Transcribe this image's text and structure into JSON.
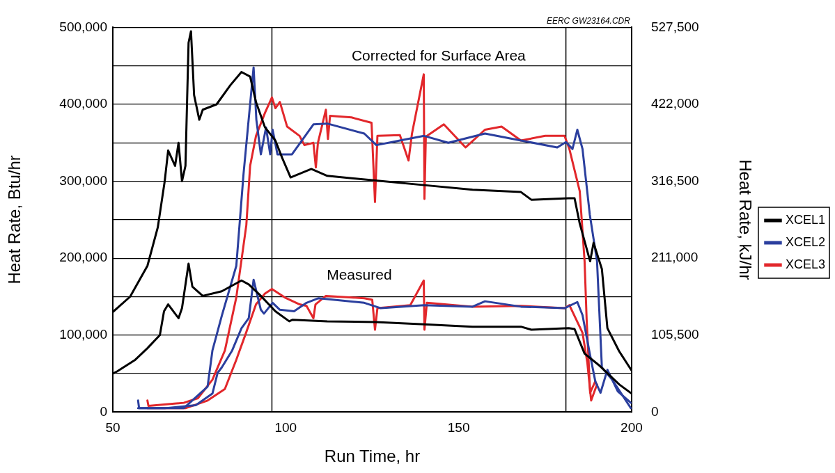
{
  "chart_data": {
    "type": "line",
    "xlabel": "Run Time, hr",
    "ylabel": "Heat Rate, Btu/hr",
    "y2label": "Heat Rate, kJ/hr",
    "xlim": [
      50,
      200
    ],
    "xticks": [
      50,
      100,
      150,
      200
    ],
    "ylim": [
      0,
      500000
    ],
    "yticks": [
      {
        "value": 0,
        "label": "0"
      },
      {
        "value": 50000,
        "label": null
      },
      {
        "value": 100000,
        "label": "100,000"
      },
      {
        "value": 150000,
        "label": null
      },
      {
        "value": 200000,
        "label": "200,000"
      },
      {
        "value": 250000,
        "label": null
      },
      {
        "value": 300000,
        "label": "300,000"
      },
      {
        "value": 350000,
        "label": null
      },
      {
        "value": 400000,
        "label": "400,000"
      },
      {
        "value": 450000,
        "label": null
      },
      {
        "value": 500000,
        "label": "500,000"
      }
    ],
    "y2lim": [
      0,
      527500
    ],
    "y2ticks": [
      {
        "value": 0,
        "label": "0"
      },
      {
        "value": 105500,
        "label": "105,500"
      },
      {
        "value": 211000,
        "label": "211,000"
      },
      {
        "value": 316500,
        "label": "316,500"
      },
      {
        "value": 422000,
        "label": "422,000"
      },
      {
        "value": 527500,
        "label": "527,500"
      }
    ],
    "grid": "y",
    "legend": "right",
    "marker": "none",
    "line_style": "solid",
    "ref_lines": [
      {
        "axis": "x",
        "value": 96,
        "color": "#000000"
      },
      {
        "axis": "x",
        "value": 181,
        "color": "#000000"
      }
    ],
    "annotations": [
      "EERC GW23164.CDR",
      "Corrected for Surface Area",
      "Measured"
    ],
    "series": [
      {
        "name": "XCEL1",
        "color": "#000000",
        "x": [
          50,
          55,
          60,
          63,
          65,
          66,
          68,
          69,
          70,
          71,
          71.9,
          72.6,
          73.5,
          75,
          76,
          80,
          84,
          87.2,
          89.7,
          91.4,
          94,
          97,
          99,
          101.4,
          107.4,
          112,
          126,
          140,
          154,
          168,
          171,
          181.8,
          183.5,
          185,
          188,
          189,
          191.4,
          193,
          196.4,
          200
        ],
        "values": [
          130000,
          150000,
          190000,
          240000,
          300000,
          340000,
          320000,
          350000,
          300000,
          320000,
          480000,
          495000,
          412000,
          380000,
          393000,
          400000,
          425000,
          442000,
          436000,
          403000,
          370000,
          353000,
          330000,
          305000,
          316000,
          307000,
          301000,
          295000,
          289000,
          286000,
          276000,
          278000,
          278000,
          245000,
          196000,
          220000,
          186000,
          109000,
          79000,
          54000
        ]
      },
      {
        "color": "#000000",
        "x": [
          50,
          51.3,
          56.5,
          60,
          63.6,
          64.8,
          66,
          69,
          70,
          71.9,
          73,
          76,
          81.5,
          87.2,
          89.3,
          92.8,
          97,
          101,
          102,
          112,
          126,
          140,
          154,
          168,
          171,
          181.8,
          183.5,
          186.4,
          190.8,
          196.4,
          200
        ],
        "values": [
          50000,
          53000,
          68000,
          83000,
          100000,
          131000,
          140000,
          122000,
          135000,
          193000,
          163000,
          151000,
          157000,
          171000,
          166000,
          151000,
          131000,
          118000,
          120000,
          118000,
          117000,
          114000,
          111000,
          111000,
          107000,
          109000,
          108000,
          76000,
          60000,
          36000,
          24000
        ]
      },
      {
        "name": "XCEL2",
        "color": "#2b3f9e",
        "x": [
          57.3,
          65,
          70.5,
          77.4,
          78.8,
          81.5,
          85.7,
          87.8,
          90.7,
          91.5,
          92.8,
          94.3,
          95.5,
          96.2,
          97.6,
          101.8,
          108,
          112,
          122.7,
          126.2,
          133,
          140,
          147,
          157.6,
          168,
          178.5,
          181,
          182.9,
          184.3,
          185.8,
          187.9,
          190,
          191.4,
          194.4,
          199.8
        ],
        "values": [
          5000,
          5000,
          5000,
          33000,
          80000,
          125000,
          190000,
          310000,
          448000,
          380000,
          335000,
          370000,
          335000,
          367000,
          335000,
          335000,
          374000,
          375000,
          362000,
          347000,
          353000,
          359000,
          350000,
          362000,
          353000,
          344000,
          351000,
          342000,
          367000,
          342000,
          257000,
          196000,
          58000,
          42000,
          5000
        ]
      },
      {
        "color": "#2b3f9e",
        "x": [
          57.3,
          57.6,
          65,
          74,
          78.8,
          80.3,
          81.5,
          84.5,
          87.2,
          89.3,
          90.7,
          92.8,
          93.7,
          96.2,
          98.3,
          102.4,
          106,
          109.5,
          122.7,
          127.5,
          140,
          154,
          157.6,
          168,
          180.6,
          184.3,
          185.8,
          187.9,
          189.5,
          191,
          193,
          196,
          199.8
        ],
        "values": [
          15000,
          5000,
          5000,
          9000,
          24000,
          51000,
          58000,
          80000,
          109000,
          122000,
          172000,
          133000,
          128000,
          142000,
          133000,
          131000,
          142000,
          148000,
          142000,
          135000,
          139000,
          137000,
          144000,
          137000,
          135000,
          143000,
          126000,
          76000,
          40000,
          25000,
          55000,
          27000,
          12000
        ]
      },
      {
        "name": "XCEL3",
        "color": "#e2272b",
        "x": [
          60,
          60.3,
          70.5,
          74.6,
          78.8,
          82.4,
          85.7,
          88.6,
          89.7,
          91.4,
          94,
          96,
          97,
          98.3,
          100.4,
          104,
          105.4,
          108,
          108.7,
          109.3,
          111.6,
          112.2,
          112.8,
          119,
          124.8,
          125.8,
          126.5,
          133,
          135.5,
          136.5,
          139.9,
          140.1,
          140.5,
          145.7,
          152,
          157.6,
          162.4,
          168,
          175,
          180.6,
          182,
          185,
          186.4,
          187,
          188,
          189.5
        ],
        "values": [
          15000,
          8000,
          12000,
          18000,
          42000,
          80000,
          149000,
          243000,
          320000,
          359000,
          389000,
          409000,
          395000,
          403000,
          371000,
          359000,
          347000,
          350000,
          318000,
          350000,
          393000,
          355000,
          385000,
          383000,
          376000,
          273000,
          359000,
          360000,
          327000,
          362000,
          439000,
          277000,
          358000,
          374000,
          344000,
          367000,
          371000,
          353000,
          359000,
          359000,
          342000,
          287000,
          196000,
          120000,
          25000,
          40000
        ]
      },
      {
        "color": "#e2272b",
        "x": [
          60,
          71,
          77.4,
          82.4,
          85.7,
          88.6,
          91.4,
          94,
          96,
          99.7,
          104,
          106,
          108,
          108.6,
          111.6,
          122.7,
          125,
          125.8,
          126.5,
          136,
          139.9,
          140.1,
          140.8,
          154,
          168,
          180.6,
          182,
          185.8,
          187.2,
          188.3,
          190
        ],
        "values": [
          5000,
          5000,
          15000,
          30000,
          68000,
          104000,
          140000,
          154000,
          160000,
          149000,
          140000,
          138000,
          122000,
          140000,
          151000,
          148000,
          146000,
          107000,
          135000,
          139000,
          171000,
          107000,
          142000,
          137000,
          138000,
          135000,
          139000,
          103000,
          64000,
          15000,
          36000
        ]
      }
    ]
  }
}
